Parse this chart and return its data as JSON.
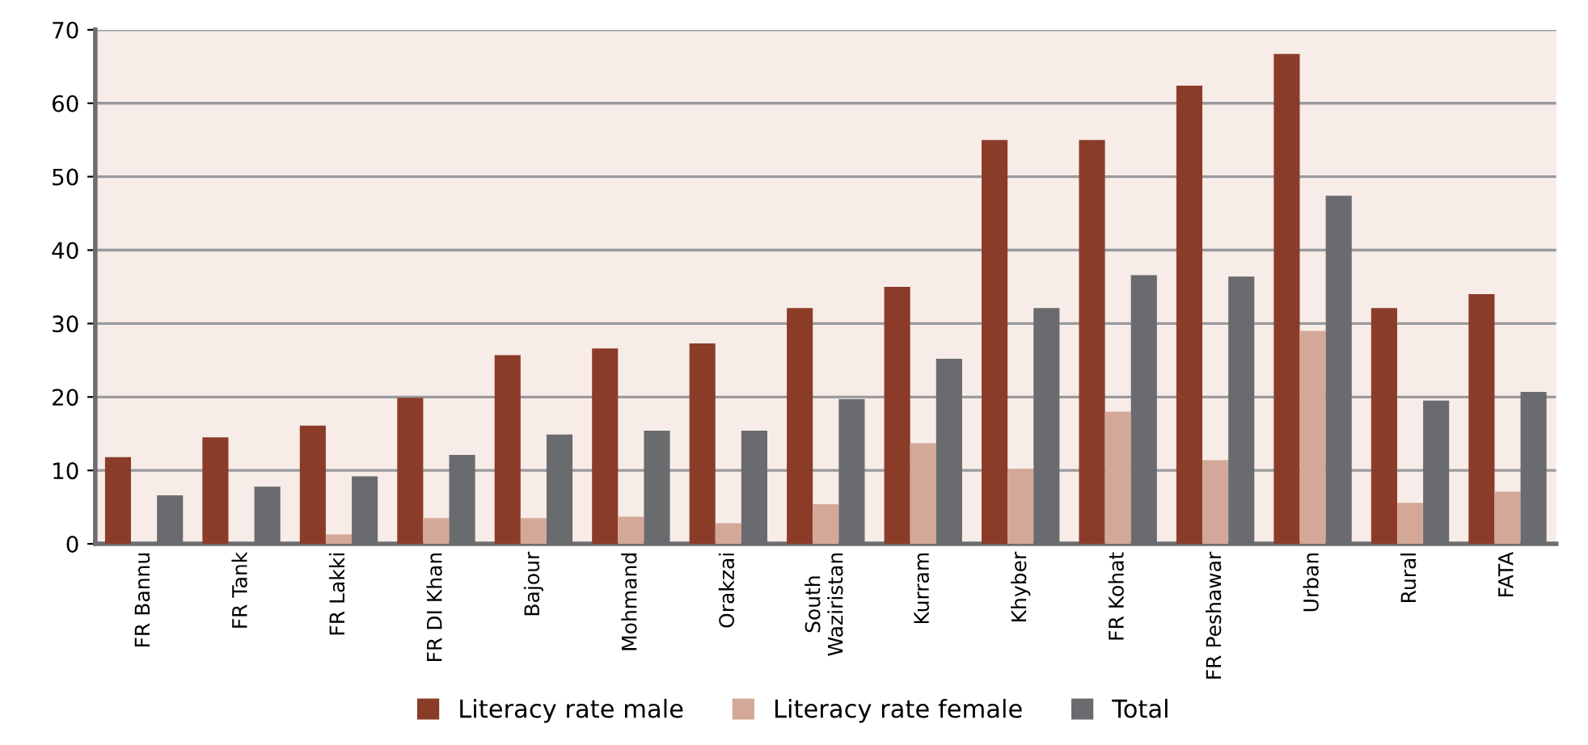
{
  "chart_data": {
    "type": "bar",
    "categories": [
      "FR Bannu",
      "FR Tank",
      "FR Lakki",
      "FR DI Khan",
      "Bajour",
      "Mohmand",
      "Orakzai",
      "South\nWaziristan",
      "Kurram",
      "Khyber",
      "FR Kohat",
      "FR Peshawar",
      "Urban",
      "Rural",
      "FATA"
    ],
    "series": [
      {
        "name": "Literacy rate male",
        "color": "#8b3c29",
        "values": [
          11.8,
          14.5,
          16.1,
          19.9,
          25.7,
          26.6,
          27.3,
          32.1,
          35.0,
          55.0,
          55.0,
          62.4,
          66.7,
          32.1,
          34.0
        ]
      },
      {
        "name": "Literacy rate female",
        "color": "#d4a898",
        "values": [
          null,
          null,
          1.3,
          3.5,
          3.5,
          3.7,
          2.8,
          5.4,
          13.7,
          10.2,
          18.0,
          11.4,
          29.0,
          5.6,
          7.1
        ]
      },
      {
        "name": "Total",
        "color": "#6a6b6e",
        "values": [
          6.6,
          7.8,
          9.2,
          12.1,
          14.9,
          15.4,
          15.4,
          19.7,
          25.2,
          32.1,
          36.6,
          36.4,
          47.4,
          19.5,
          20.7
        ]
      }
    ],
    "ylim": [
      0,
      70
    ],
    "yticks": [
      0,
      10,
      20,
      30,
      40,
      50,
      60,
      70
    ],
    "grid": "y",
    "legend": "bottom"
  }
}
